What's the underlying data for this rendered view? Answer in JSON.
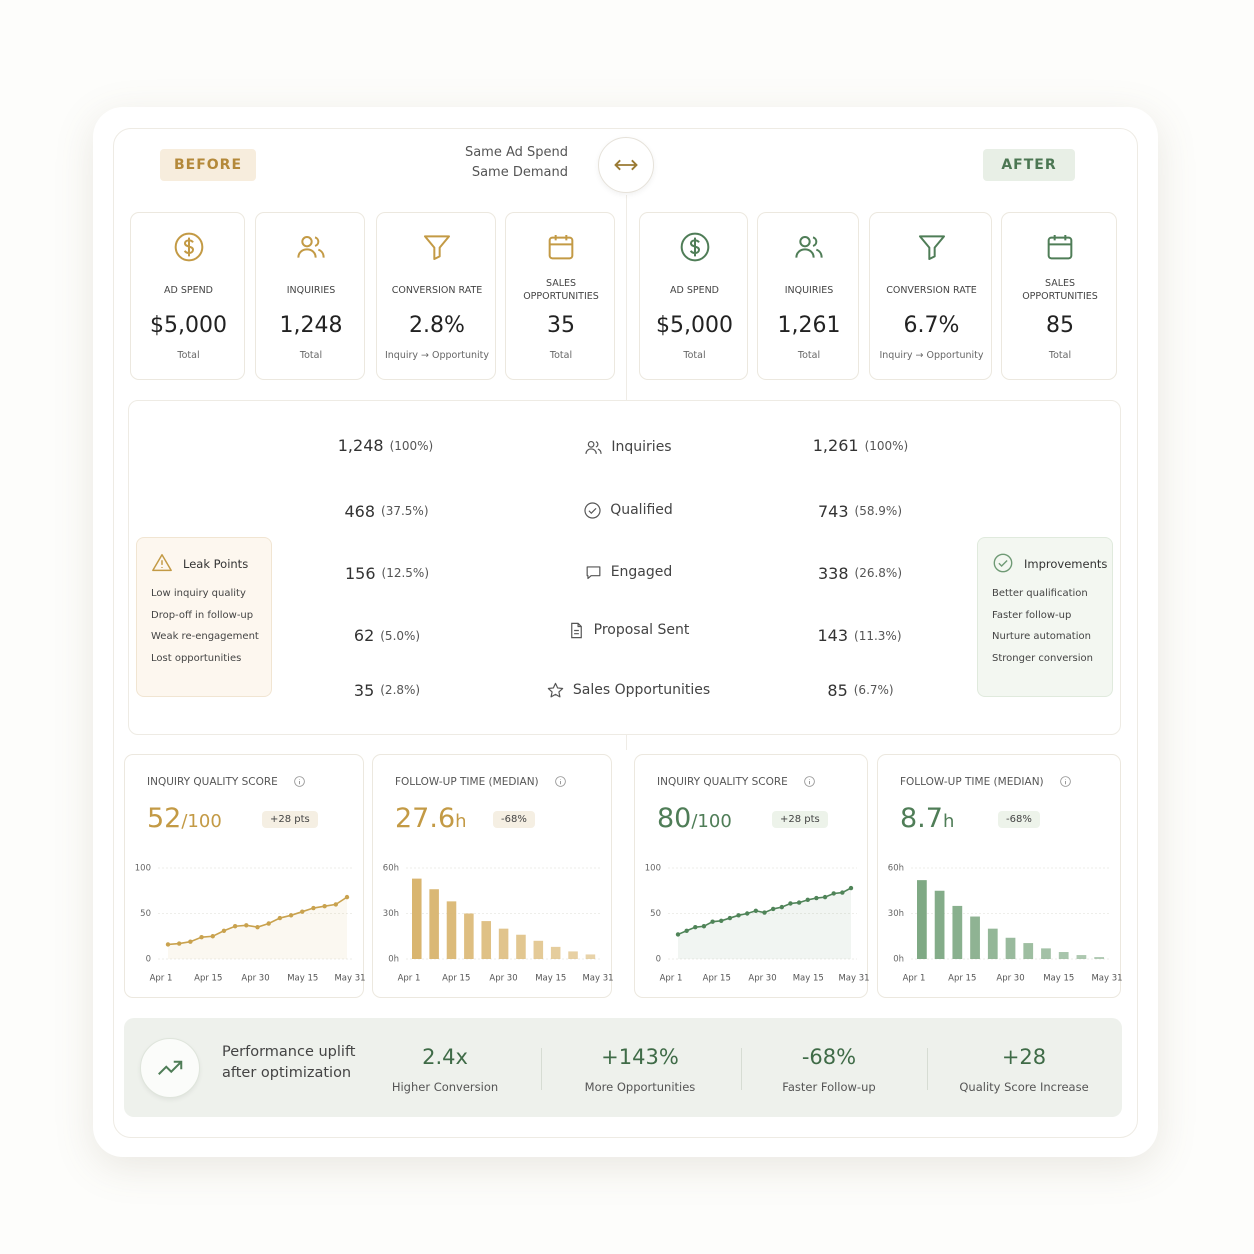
{
  "header": {
    "before_tag": "BEFORE",
    "after_tag": "AFTER",
    "note": [
      "Same Ad Spend",
      "Same Demand"
    ]
  },
  "kpis": {
    "before": [
      {
        "label": "AD SPEND",
        "value": "$5,000",
        "sub": "Total"
      },
      {
        "label": "INQUIRIES",
        "value": "1,248",
        "sub": "Total"
      },
      {
        "label": "CONVERSION RATE",
        "value": "2.8%",
        "sub": "Inquiry → Opportunity"
      },
      {
        "label": "SALES OPPORTUNITIES",
        "value": "35",
        "sub": "Total"
      }
    ],
    "after": [
      {
        "label": "AD SPEND",
        "value": "$5,000",
        "sub": "Total"
      },
      {
        "label": "INQUIRIES",
        "value": "1,261",
        "sub": "Total"
      },
      {
        "label": "CONVERSION RATE",
        "value": "6.7%",
        "sub": "Inquiry → Opportunity"
      },
      {
        "label": "SALES OPPORTUNITIES",
        "value": "85",
        "sub": "Total"
      }
    ]
  },
  "funnel": {
    "stages": [
      "Inquiries",
      "Qualified",
      "Engaged",
      "Proposal Sent",
      "Sales Opportunities"
    ],
    "before": [
      {
        "value": "1,248",
        "share": "(100%)"
      },
      {
        "value": "468",
        "share": "(37.5%)"
      },
      {
        "value": "156",
        "share": "(12.5%)"
      },
      {
        "value": "62",
        "share": "(5.0%)"
      },
      {
        "value": "35",
        "share": "(2.8%)"
      }
    ],
    "after": [
      {
        "value": "1,261",
        "share": "(100%)"
      },
      {
        "value": "743",
        "share": "(58.9%)"
      },
      {
        "value": "338",
        "share": "(26.8%)"
      },
      {
        "value": "143",
        "share": "(11.3%)"
      },
      {
        "value": "85",
        "share": "(6.7%)"
      }
    ]
  },
  "leak_points": {
    "title": "Leak Points",
    "items": [
      "Low inquiry quality",
      "Drop-off in follow-up",
      "Weak re-engagement",
      "Lost opportunities"
    ]
  },
  "improvements": {
    "title": "Improvements",
    "items": [
      "Better qualification",
      "Faster follow-up",
      "Nurture automation",
      "Stronger conversion"
    ]
  },
  "chart_data": [
    {
      "type": "line",
      "title": "INQUIRY QUALITY SCORE",
      "headline": "52",
      "headline_unit": "/100",
      "badge": "+28 pts",
      "color": "#c9a24e",
      "x_labels": [
        "Apr 1",
        "Apr 15",
        "Apr 30",
        "May 15",
        "May 31"
      ],
      "values": [
        16,
        17,
        19,
        24,
        25,
        31,
        36,
        37,
        35,
        39,
        45,
        48,
        52,
        56,
        58,
        60,
        68
      ],
      "ylim": [
        0,
        100
      ],
      "yticks": [
        0,
        50,
        100
      ]
    },
    {
      "type": "bar",
      "title": "FOLLOW-UP TIME (MEDIAN)",
      "headline": "27.6",
      "headline_unit": "h",
      "badge": "-68%",
      "color": "#d9b56f",
      "x_labels": [
        "Apr 1",
        "Apr 15",
        "Apr 30",
        "May 15",
        "May 31"
      ],
      "values": [
        53,
        46,
        38,
        30,
        25,
        20,
        16,
        12,
        8,
        5,
        3
      ],
      "ylim": [
        0,
        60
      ],
      "yticks": [
        {
          "value": 0,
          "label": "0h"
        },
        {
          "value": 30,
          "label": "30h"
        },
        {
          "value": 60,
          "label": "60h"
        }
      ]
    },
    {
      "type": "line",
      "title": "INQUIRY QUALITY SCORE",
      "headline": "80",
      "headline_unit": "/100",
      "badge": "+28 pts",
      "color": "#4f8458",
      "x_labels": [
        "Apr 1",
        "Apr 15",
        "Apr 30",
        "May 15",
        "May 31"
      ],
      "values": [
        27,
        31,
        35,
        36,
        41,
        42,
        45,
        48,
        50,
        53,
        51,
        55,
        57,
        61,
        62,
        65,
        67,
        68,
        72,
        73,
        78
      ],
      "ylim": [
        0,
        100
      ],
      "yticks": [
        0,
        50,
        100
      ]
    },
    {
      "type": "bar",
      "title": "FOLLOW-UP TIME (MEDIAN)",
      "headline": "8.7",
      "headline_unit": "h",
      "badge": "-68%",
      "color": "#7fa984",
      "x_labels": [
        "Apr 1",
        "Apr 15",
        "Apr 30",
        "May 15",
        "May 31"
      ],
      "values": [
        52,
        45,
        35,
        28,
        20,
        14,
        10.5,
        7,
        4.6,
        2.6,
        1.3
      ],
      "ylim": [
        0,
        60
      ],
      "yticks": [
        {
          "value": 0,
          "label": "0h"
        },
        {
          "value": 30,
          "label": "30h"
        },
        {
          "value": 60,
          "label": "60h"
        }
      ]
    }
  ],
  "summary": {
    "title": "Performance uplift after optimization",
    "metrics": [
      {
        "value": "2.4x",
        "label": "Higher Conversion"
      },
      {
        "value": "+143%",
        "label": "More Opportunities"
      },
      {
        "value": "-68%",
        "label": "Faster Follow-up"
      },
      {
        "value": "+28",
        "label": "Quality Score Increase"
      }
    ]
  }
}
